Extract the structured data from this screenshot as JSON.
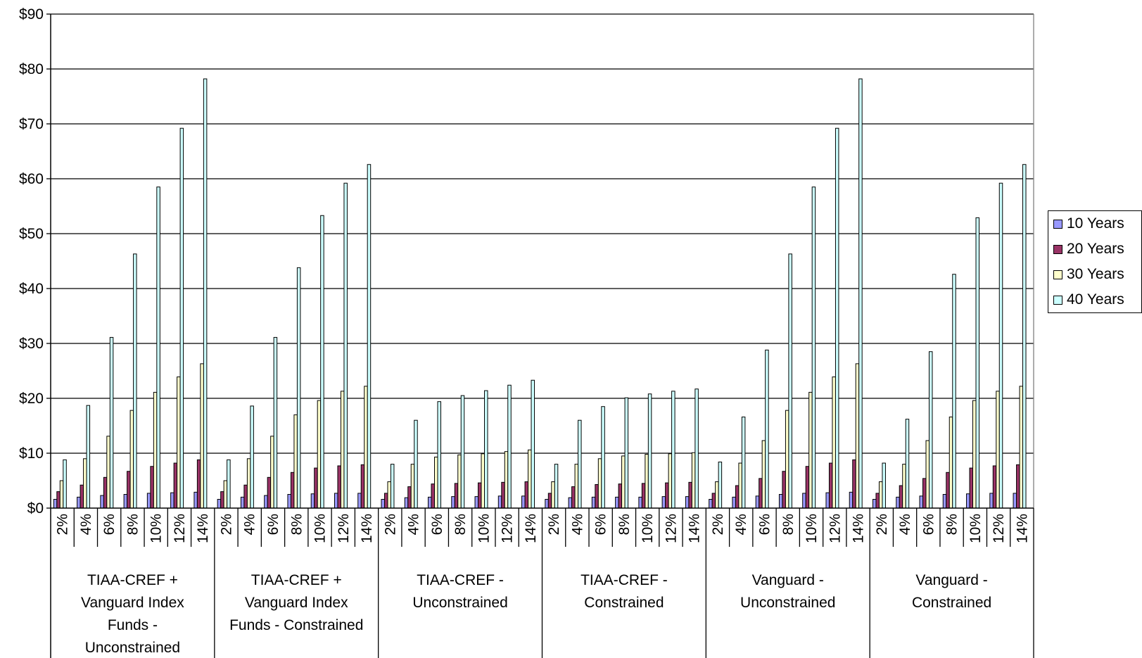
{
  "chart_data": {
    "type": "bar",
    "y_axis": {
      "min": 0,
      "max": 90,
      "step": 10,
      "tick_labels": [
        "$0",
        "$10",
        "$20",
        "$30",
        "$40",
        "$50",
        "$60",
        "$70",
        "$80",
        "$90"
      ]
    },
    "grid": true,
    "legend_position": "right",
    "groups": [
      {
        "label": "TIAA-CREF + Vanguard Index Funds - Unconstrained",
        "label_lines": [
          "TIAA-CREF +",
          "Vanguard Index",
          "Funds -",
          "Unconstrained"
        ]
      },
      {
        "label": "TIAA-CREF + Vanguard Index Funds - Constrained",
        "label_lines": [
          "TIAA-CREF +",
          "Vanguard Index",
          "Funds - Constrained"
        ]
      },
      {
        "label": "TIAA-CREF - Unconstrained",
        "label_lines": [
          "TIAA-CREF -",
          "Unconstrained"
        ]
      },
      {
        "label": "TIAA-CREF - Constrained",
        "label_lines": [
          "TIAA-CREF -",
          "Constrained"
        ]
      },
      {
        "label": "Vanguard - Unconstrained",
        "label_lines": [
          "Vanguard -",
          "Unconstrained"
        ]
      },
      {
        "label": "Vanguard - Constrained",
        "label_lines": [
          "Vanguard -",
          "Constrained"
        ]
      }
    ],
    "categories": [
      "2%",
      "4%",
      "6%",
      "8%",
      "10%",
      "12%",
      "14%"
    ],
    "series": [
      {
        "name": "10 Years",
        "color": "#9999FF",
        "values": [
          [
            1.6,
            2.0,
            2.3,
            2.5,
            2.7,
            2.8,
            2.9
          ],
          [
            1.6,
            2.0,
            2.3,
            2.5,
            2.6,
            2.7,
            2.7
          ],
          [
            1.6,
            1.9,
            2.0,
            2.1,
            2.1,
            2.2,
            2.2
          ],
          [
            1.6,
            1.9,
            2.0,
            2.0,
            2.0,
            2.1,
            2.1
          ],
          [
            1.6,
            2.0,
            2.2,
            2.5,
            2.7,
            2.8,
            2.9
          ],
          [
            1.6,
            2.0,
            2.2,
            2.5,
            2.6,
            2.7,
            2.7
          ]
        ]
      },
      {
        "name": "20 Years",
        "color": "#993366",
        "values": [
          [
            3.0,
            4.2,
            5.6,
            6.7,
            7.6,
            8.2,
            8.8
          ],
          [
            3.0,
            4.2,
            5.6,
            6.5,
            7.3,
            7.7,
            7.9
          ],
          [
            2.7,
            3.9,
            4.4,
            4.5,
            4.6,
            4.7,
            4.8
          ],
          [
            2.7,
            3.9,
            4.3,
            4.4,
            4.5,
            4.6,
            4.7
          ],
          [
            2.7,
            4.1,
            5.4,
            6.7,
            7.6,
            8.2,
            8.8
          ],
          [
            2.7,
            4.1,
            5.4,
            6.5,
            7.3,
            7.7,
            7.9
          ]
        ]
      },
      {
        "name": "30 Years",
        "color": "#FFFFCC",
        "values": [
          [
            5.0,
            9.0,
            13.1,
            17.8,
            21.1,
            23.9,
            26.3
          ],
          [
            5.0,
            9.0,
            13.1,
            17.0,
            19.6,
            21.3,
            22.2
          ],
          [
            4.8,
            8.0,
            9.3,
            9.7,
            9.9,
            10.3,
            10.6
          ],
          [
            4.8,
            8.0,
            9.0,
            9.5,
            9.8,
            9.9,
            10.1
          ],
          [
            4.8,
            8.2,
            12.3,
            17.8,
            21.1,
            23.9,
            26.3
          ],
          [
            4.8,
            8.0,
            12.3,
            16.6,
            19.6,
            21.3,
            22.2
          ]
        ]
      },
      {
        "name": "40 Years",
        "color": "#CCFFFF",
        "values": [
          [
            8.8,
            18.7,
            31.1,
            46.3,
            58.5,
            69.2,
            78.2
          ],
          [
            8.8,
            18.6,
            31.1,
            43.8,
            53.3,
            59.2,
            62.6
          ],
          [
            8.0,
            16.0,
            19.4,
            20.5,
            21.4,
            22.4,
            23.3
          ],
          [
            8.0,
            16.0,
            18.5,
            20.1,
            20.8,
            21.3,
            21.7
          ],
          [
            8.4,
            16.6,
            28.8,
            46.3,
            58.5,
            69.2,
            78.2
          ],
          [
            8.2,
            16.2,
            28.5,
            42.6,
            52.9,
            59.2,
            62.6
          ]
        ]
      }
    ]
  }
}
